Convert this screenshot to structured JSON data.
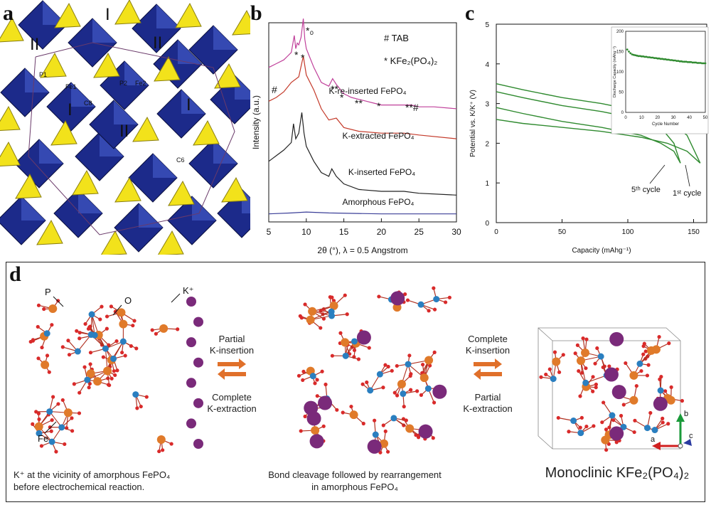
{
  "labels": {
    "a": "a",
    "b": "b",
    "c": "c",
    "d": "d"
  },
  "panel_a": {
    "regions": [
      "I",
      "II",
      "II",
      "I",
      "II",
      "I"
    ],
    "atoms": [
      "P1",
      "Fe1",
      "P2",
      "Fe2",
      "C8",
      "C6"
    ],
    "colors": {
      "octahedra": "#1c2a8a",
      "tetrahedra": "#f2e21b"
    }
  },
  "panel_b": {
    "ylabel": "Intensity (a.u.)",
    "xlabel": "2θ (°), λ = 0.5 Angstrom",
    "legend": [
      {
        "marker": "#",
        "text": "TAB"
      },
      {
        "marker": "*",
        "text": "KFe₂(PO₄)₂"
      }
    ],
    "peak_marks": [
      "*₀",
      "*",
      "*",
      "#",
      "**",
      "*",
      "**",
      "*",
      "**#"
    ]
  },
  "panel_c": {
    "ylabel": "Potential vs. K/K⁺ (V)",
    "xlabel": "Capacity (mAhg⁻¹)",
    "cycle_labels": [
      "5ᵗʰ cycle",
      "1ˢᵗ cycle"
    ],
    "inset": {
      "ylabel": "Discharge Capacity (mAhg⁻¹)",
      "xlabel": "Cycle Number"
    }
  },
  "chart_data": [
    {
      "type": "line",
      "xlabel": "2θ (°), λ = 0.5 Angstrom",
      "ylabel": "Intensity (a.u.)",
      "xlim": [
        5,
        30
      ],
      "x_ticks": [
        "5",
        "10",
        "15",
        "20",
        "25",
        "30"
      ],
      "series": [
        {
          "name": "K-re-inserted FePO₄",
          "color": "#c0409a",
          "x": [
            5,
            6,
            7,
            7.5,
            8,
            8.4,
            8.6,
            8.8,
            9.0,
            9.3,
            9.6,
            9.8,
            10.0,
            10.5,
            11,
            12,
            13,
            13.5,
            14,
            15,
            16,
            17,
            18,
            19,
            20,
            21,
            22,
            23,
            24,
            25,
            27,
            30
          ],
          "y": [
            0.8,
            0.82,
            0.84,
            0.86,
            0.88,
            0.97,
            0.9,
            0.93,
            0.92,
            0.96,
            1.06,
            0.95,
            0.9,
            0.85,
            0.8,
            0.72,
            0.7,
            0.74,
            0.71,
            0.66,
            0.64,
            0.63,
            0.62,
            0.61,
            0.6,
            0.6,
            0.6,
            0.6,
            0.6,
            0.59,
            0.59,
            0.58
          ]
        },
        {
          "name": "K-extracted FePO₄",
          "color": "#c43a2a",
          "x": [
            5,
            6,
            7,
            8,
            9,
            9.6,
            10,
            11,
            12,
            13,
            14,
            15,
            17,
            20,
            23,
            25,
            30
          ],
          "y": [
            0.62,
            0.64,
            0.67,
            0.72,
            0.75,
            0.86,
            0.76,
            0.68,
            0.58,
            0.52,
            0.53,
            0.48,
            0.46,
            0.45,
            0.45,
            0.44,
            0.42
          ]
        },
        {
          "name": "K-inserted FePO₄",
          "color": "#222222",
          "x": [
            5,
            6,
            7,
            8,
            8.3,
            8.6,
            9,
            9.4,
            9.7,
            10,
            11,
            12,
            13,
            13.4,
            14,
            15,
            17,
            20,
            23,
            25,
            30
          ],
          "y": [
            0.3,
            0.33,
            0.36,
            0.4,
            0.5,
            0.42,
            0.45,
            0.56,
            0.45,
            0.38,
            0.3,
            0.24,
            0.22,
            0.26,
            0.22,
            0.18,
            0.15,
            0.14,
            0.14,
            0.13,
            0.12
          ]
        },
        {
          "name": "Amorphous FePO₄",
          "color": "#3b3f98",
          "x": [
            5,
            8,
            10,
            13,
            20,
            30
          ],
          "y": [
            0.02,
            0.025,
            0.03,
            0.025,
            0.02,
            0.02
          ]
        }
      ]
    },
    {
      "type": "line",
      "xlabel": "Capacity (mAhg⁻¹)",
      "ylabel": "Potential vs. K/K⁺ (V)",
      "xlim": [
        0,
        160
      ],
      "ylim": [
        0,
        5
      ],
      "x_ticks": [
        "0",
        "50",
        "100",
        "150"
      ],
      "y_ticks": [
        "0",
        "1",
        "2",
        "3",
        "4",
        "5"
      ],
      "series": [
        {
          "name": "charge 1",
          "x": [
            0,
            20,
            50,
            80,
            110,
            130,
            145,
            155
          ],
          "y": [
            3.5,
            3.35,
            3.15,
            3.0,
            2.8,
            2.6,
            2.2,
            1.5
          ]
        },
        {
          "name": "discharge 1",
          "x": [
            0,
            20,
            50,
            80,
            110,
            130,
            145,
            155
          ],
          "y": [
            2.6,
            2.5,
            2.4,
            2.3,
            2.15,
            2.0,
            1.8,
            1.5
          ]
        },
        {
          "name": "charge 5",
          "x": [
            0,
            20,
            50,
            80,
            110,
            125,
            135,
            140
          ],
          "y": [
            3.3,
            3.15,
            2.95,
            2.8,
            2.6,
            2.4,
            2.0,
            1.5
          ]
        },
        {
          "name": "discharge 5",
          "x": [
            0,
            20,
            50,
            80,
            110,
            125,
            135,
            140
          ],
          "y": [
            2.9,
            2.75,
            2.55,
            2.4,
            2.2,
            2.0,
            1.8,
            1.5
          ]
        }
      ]
    },
    {
      "type": "scatter",
      "xlabel": "Cycle Number",
      "ylabel": "Discharge Capacity (mAhg⁻¹)",
      "xlim": [
        0,
        50
      ],
      "ylim": [
        0,
        200
      ],
      "x_ticks": [
        "0",
        "10",
        "20",
        "30",
        "40",
        "50"
      ],
      "y_ticks": [
        "0",
        "50",
        "100",
        "150",
        "200"
      ],
      "x": [
        1,
        2,
        3,
        4,
        5,
        6,
        7,
        8,
        9,
        10,
        11,
        12,
        13,
        14,
        15,
        16,
        17,
        18,
        19,
        20,
        21,
        22,
        23,
        24,
        25,
        26,
        27,
        28,
        29,
        30,
        31,
        32,
        33,
        34,
        35,
        36,
        37,
        38,
        39,
        40,
        41,
        42,
        43,
        44,
        45,
        46,
        47,
        48,
        49,
        50
      ],
      "y": [
        155,
        150,
        146,
        143,
        142,
        141,
        140,
        139,
        139,
        138,
        138,
        137,
        137,
        136,
        136,
        135,
        135,
        134,
        134,
        133,
        133,
        132,
        132,
        131,
        131,
        130,
        130,
        129,
        129,
        128,
        128,
        127,
        127,
        126,
        126,
        125,
        125,
        125,
        124,
        124,
        124,
        123,
        123,
        123,
        122,
        122,
        122,
        121,
        121,
        121
      ]
    }
  ],
  "panel_d": {
    "atom_labels": {
      "p": "P",
      "o": "O",
      "k": "K⁺",
      "fe": "Fe"
    },
    "left_arrow": {
      "top": "Partial\nK-insertion",
      "bottom": "Complete\nK-extraction"
    },
    "right_arrow": {
      "top": "Complete\nK-insertion",
      "bottom": "Partial\nK-extraction"
    },
    "captions": {
      "left": "K⁺ at the vicinity of amorphous  FePO₄\nbefore electrochemical reaction.",
      "middle": "Bond cleavage followed by rearrangement\nin amorphous FePO₄",
      "right": "Monoclinic KFe₂(PO₄)₂"
    },
    "axes": {
      "a": "a",
      "b": "b",
      "c": "c"
    },
    "colors": {
      "fe": "#e07a2a",
      "p": "#2a7fc0",
      "o": "#d92a2a",
      "k": "#7a2a7a",
      "bond": "#b03020"
    }
  }
}
